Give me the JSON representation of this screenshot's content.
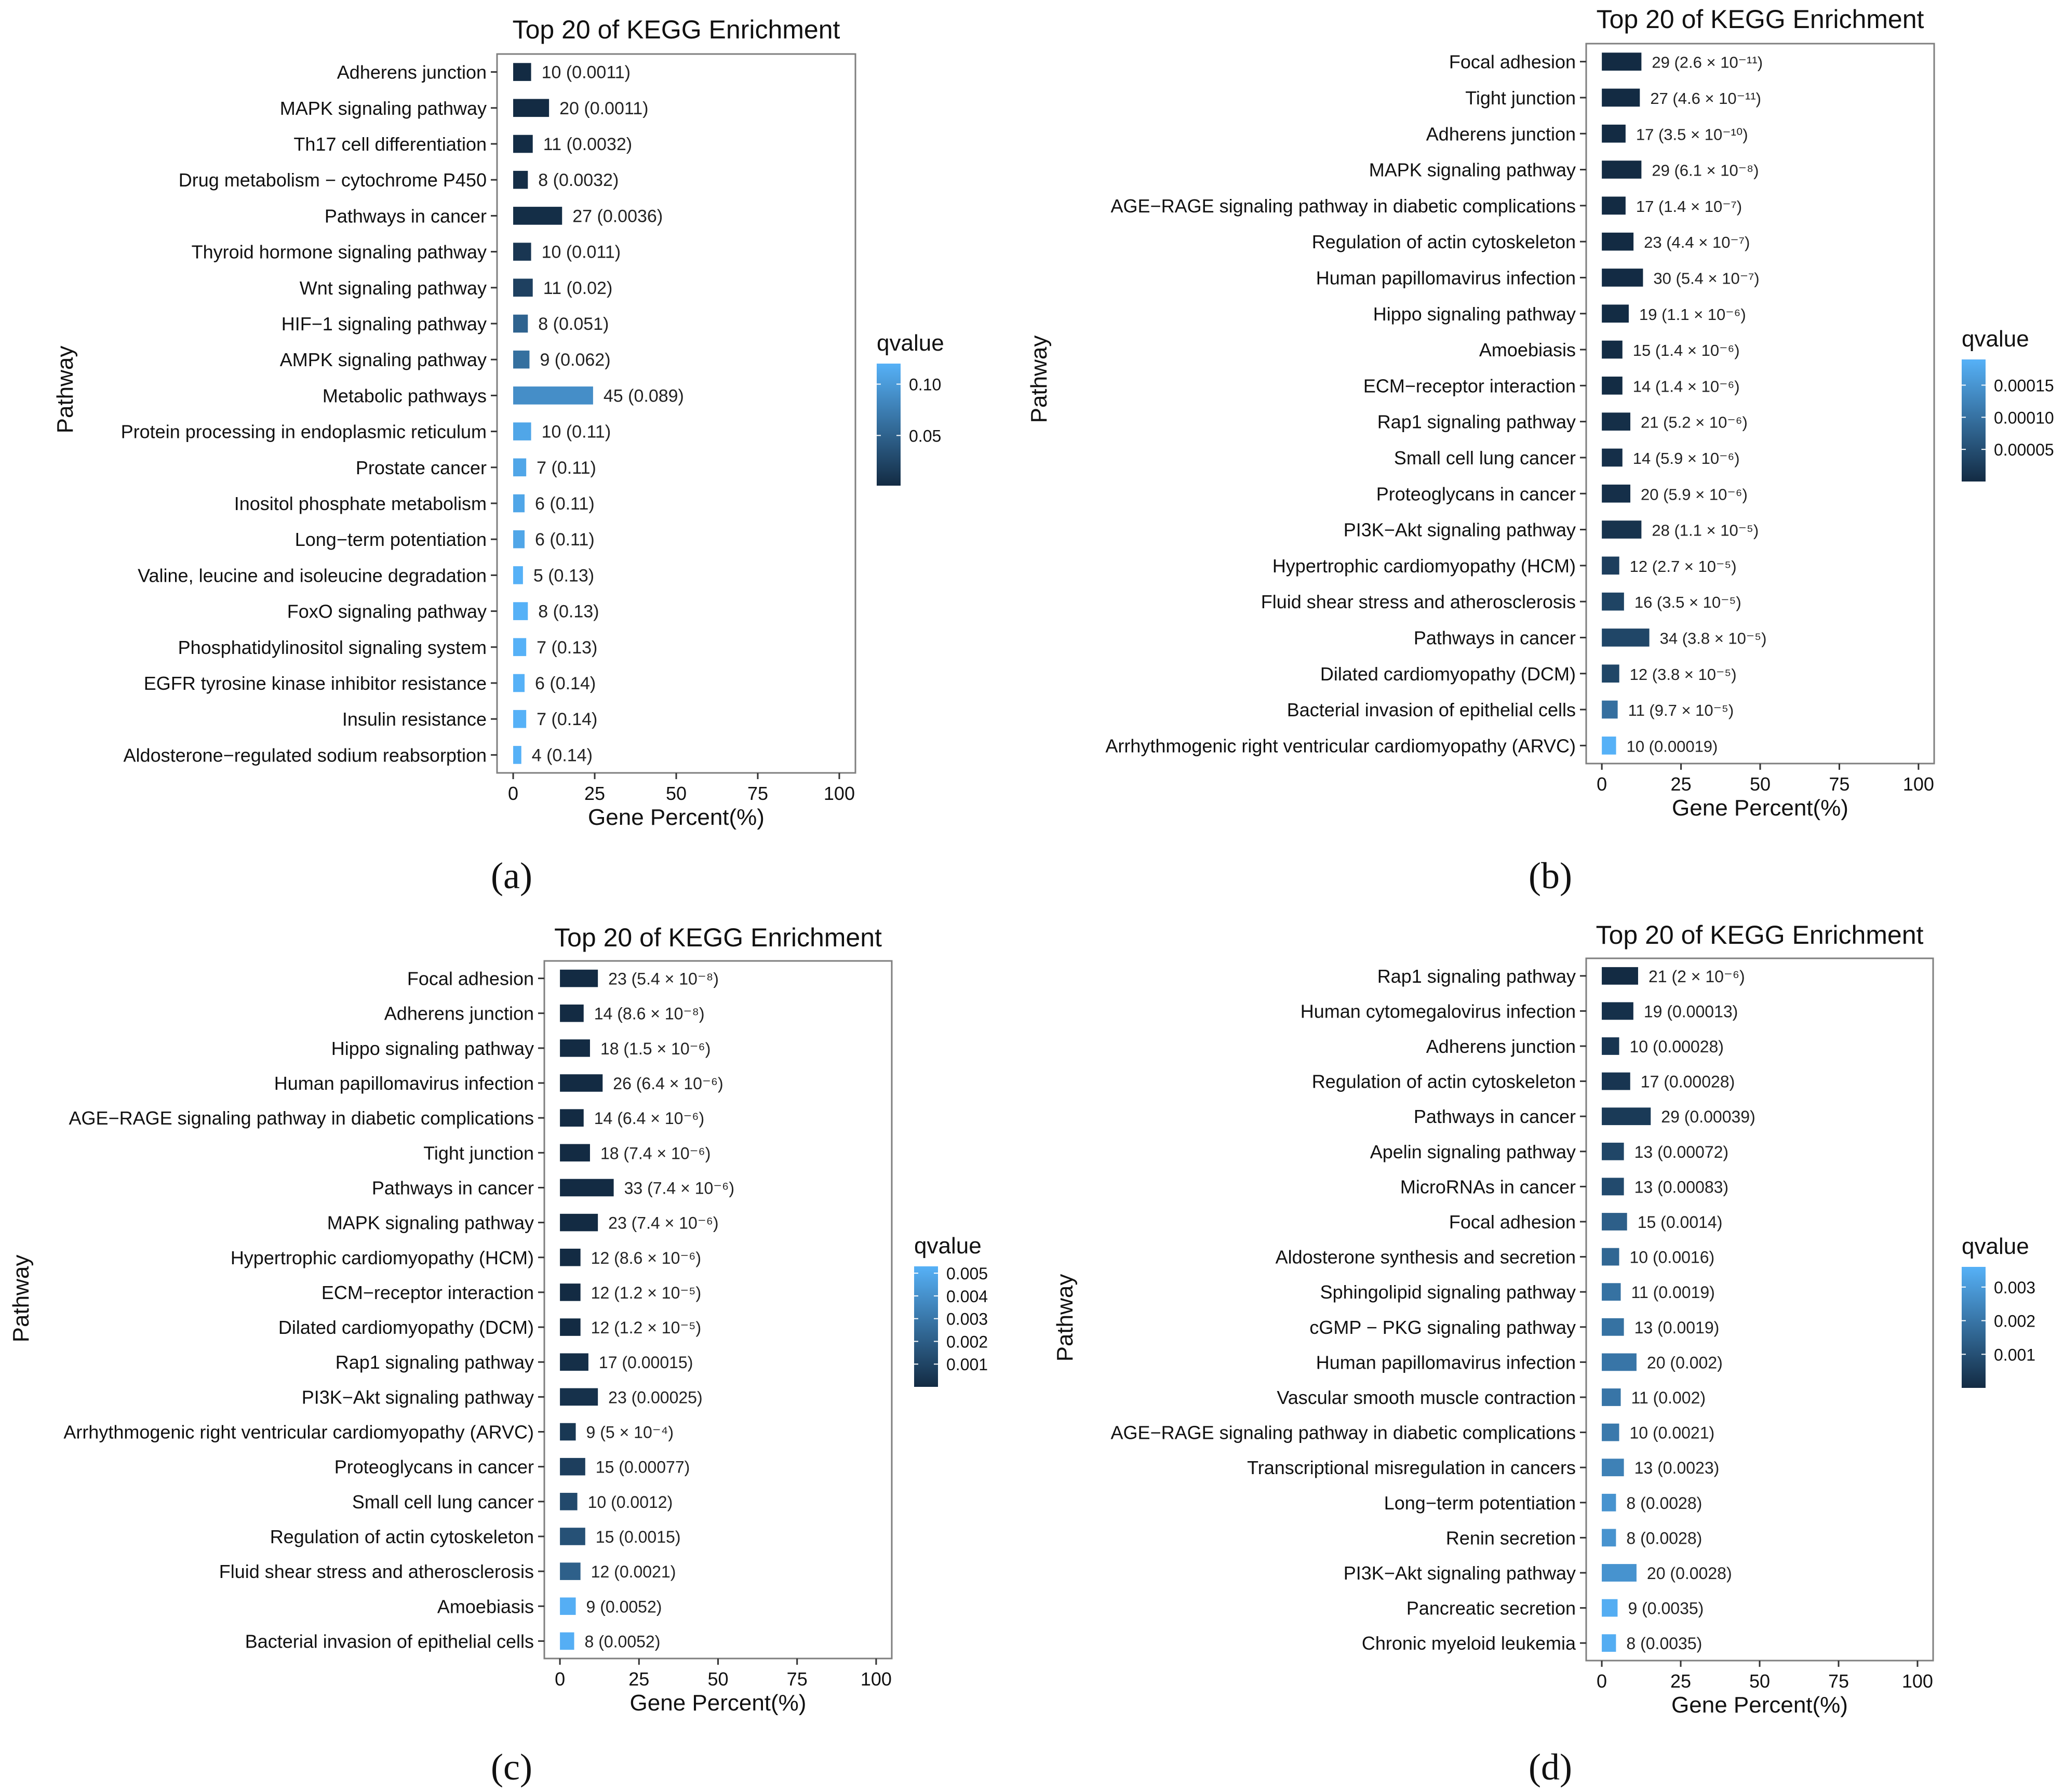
{
  "figure": {
    "panel_captions": [
      "(a)",
      "(b)",
      "(c)",
      "(d)"
    ]
  },
  "colors": {
    "low_q": "#132b43",
    "high_q": "#56b1f7",
    "axis": "#333333",
    "frame": "#7f7f7f"
  },
  "chart_data": [
    {
      "type": "bar",
      "orientation": "horizontal",
      "title": "Top 20 of KEGG Enrichment",
      "xlabel": "Gene Percent(%)",
      "ylabel": "Pathway",
      "xlim": [
        0,
        100
      ],
      "xticks": [
        "0",
        "25",
        "50",
        "75",
        "100"
      ],
      "color_legend": {
        "title": "qvalue",
        "ticks": [
          "0.10",
          "0.05"
        ],
        "tick_values": [
          0.1,
          0.05
        ],
        "range": [
          0.0011,
          0.12
        ]
      },
      "categories": [
        "Adherens junction",
        "MAPK signaling pathway",
        "Th17 cell differentiation",
        "Drug metabolism − cytochrome P450",
        "Pathways in cancer",
        "Thyroid hormone signaling pathway",
        "Wnt signaling pathway",
        "HIF−1 signaling pathway",
        "AMPK signaling pathway",
        "Metabolic pathways",
        "Protein processing in endoplasmic reticulum",
        "Prostate cancer",
        "Inositol phosphate metabolism",
        "Long−term potentiation",
        "Valine, leucine and isoleucine degradation",
        "FoxO signaling pathway",
        "Phosphatidylinositol signaling system",
        "EGFR tyrosine kinase inhibitor resistance",
        "Insulin resistance",
        "Aldosterone−regulated sodium reabsorption"
      ],
      "values": [
        5.5,
        11,
        6,
        4.5,
        15,
        5.5,
        6,
        4.5,
        5,
        24.5,
        5.5,
        4,
        3.5,
        3.5,
        3,
        4.5,
        4,
        3.5,
        4,
        2.5
      ],
      "labels": [
        "10 (0.0011)",
        "20 (0.0011)",
        "11 (0.0032)",
        "8 (0.0032)",
        "27 (0.0036)",
        "10 (0.011)",
        "11 (0.02)",
        "8 (0.051)",
        "9 (0.062)",
        "45 (0.089)",
        "10 (0.11)",
        "7 (0.11)",
        "6 (0.11)",
        "6 (0.11)",
        "5 (0.13)",
        "8 (0.13)",
        "7 (0.13)",
        "6 (0.14)",
        "7 (0.14)",
        "4 (0.14)"
      ],
      "qvalues": [
        0.0011,
        0.0011,
        0.0032,
        0.0032,
        0.0036,
        0.011,
        0.02,
        0.051,
        0.062,
        0.089,
        0.11,
        0.11,
        0.11,
        0.11,
        0.13,
        0.13,
        0.13,
        0.14,
        0.14,
        0.14
      ]
    },
    {
      "type": "bar",
      "orientation": "horizontal",
      "title": "Top 20 of KEGG Enrichment",
      "xlabel": "Gene Percent(%)",
      "ylabel": "Pathway",
      "xlim": [
        0,
        100
      ],
      "xticks": [
        "0",
        "25",
        "50",
        "75",
        "100"
      ],
      "color_legend": {
        "title": "qvalue",
        "ticks": [
          "0.00015",
          "0.00010",
          "0.00005"
        ],
        "tick_values": [
          0.00015,
          0.0001,
          5e-05
        ],
        "range": [
          0,
          0.00019
        ]
      },
      "categories": [
        "Focal adhesion",
        "Tight junction",
        "Adherens junction",
        "MAPK signaling pathway",
        "AGE−RAGE signaling pathway in diabetic complications",
        "Regulation of actin cytoskeleton",
        "Human papillomavirus infection",
        "Hippo signaling pathway",
        "Amoebiasis",
        "ECM−receptor interaction",
        "Rap1 signaling pathway",
        "Small cell lung cancer",
        "Proteoglycans in cancer",
        "PI3K−Akt signaling pathway",
        "Hypertrophic cardiomyopathy (HCM)",
        "Fluid shear stress and atherosclerosis",
        "Pathways in cancer",
        "Dilated cardiomyopathy (DCM)",
        "Bacterial invasion of epithelial cells",
        "Arrhythmogenic right ventricular cardiomyopathy (ARVC)"
      ],
      "values": [
        12.5,
        12,
        7.5,
        12.5,
        7.5,
        10,
        13,
        8.5,
        6.5,
        6.5,
        9,
        6.5,
        9,
        12.5,
        5.5,
        7,
        15,
        5.5,
        5,
        4.5
      ],
      "labels": [
        "29 (2.6 × 10⁻¹¹)",
        "27 (4.6 × 10⁻¹¹)",
        "17 (3.5 × 10⁻¹⁰)",
        "29 (6.1 × 10⁻⁸)",
        "17 (1.4 × 10⁻⁷)",
        "23 (4.4 × 10⁻⁷)",
        "30 (5.4 × 10⁻⁷)",
        "19 (1.1 × 10⁻⁶)",
        "15 (1.4 × 10⁻⁶)",
        "14 (1.4 × 10⁻⁶)",
        "21 (5.2 × 10⁻⁶)",
        "14 (5.9 × 10⁻⁶)",
        "20 (5.9 × 10⁻⁶)",
        "28 (1.1 × 10⁻⁵)",
        "12 (2.7 × 10⁻⁵)",
        "16 (3.5 × 10⁻⁵)",
        "34 (3.8 × 10⁻⁵)",
        "12 (3.8 × 10⁻⁵)",
        "11 (9.7 × 10⁻⁵)",
        "10 (0.00019)"
      ],
      "qvalues": [
        2.6e-11,
        4.6e-11,
        3.5e-10,
        6.1e-08,
        1.4e-07,
        4.4e-07,
        5.4e-07,
        1.1e-06,
        1.4e-06,
        1.4e-06,
        5.2e-06,
        5.9e-06,
        5.9e-06,
        1.1e-05,
        2.7e-05,
        3.5e-05,
        3.8e-05,
        3.8e-05,
        9.7e-05,
        0.00019
      ]
    },
    {
      "type": "bar",
      "orientation": "horizontal",
      "title": "Top 20 of KEGG Enrichment",
      "xlabel": "Gene Percent(%)",
      "ylabel": "Pathway",
      "xlim": [
        0,
        100
      ],
      "xticks": [
        "0",
        "25",
        "50",
        "75",
        "100"
      ],
      "color_legend": {
        "title": "qvalue",
        "ticks": [
          "0.005",
          "0.004",
          "0.003",
          "0.002",
          "0.001"
        ],
        "tick_values": [
          0.005,
          0.004,
          0.003,
          0.002,
          0.001
        ],
        "range": [
          0,
          0.0053
        ]
      },
      "categories": [
        "Focal adhesion",
        "Adherens junction",
        "Hippo signaling pathway",
        "Human papillomavirus infection",
        "AGE−RAGE signaling pathway in diabetic complications",
        "Tight junction",
        "Pathways in cancer",
        "MAPK signaling pathway",
        "Hypertrophic cardiomyopathy (HCM)",
        "ECM−receptor interaction",
        "Dilated cardiomyopathy (DCM)",
        "Rap1 signaling pathway",
        "PI3K−Akt signaling pathway",
        "Arrhythmogenic right ventricular cardiomyopathy (ARVC)",
        "Proteoglycans in cancer",
        "Small cell lung cancer",
        "Regulation of actin cytoskeleton",
        "Fluid shear stress and atherosclerosis",
        "Amoebiasis",
        "Bacterial invasion of epithelial cells"
      ],
      "values": [
        12,
        7.5,
        9.5,
        13.5,
        7.5,
        9.5,
        17,
        12,
        6.5,
        6.5,
        6.5,
        9,
        12,
        5,
        8,
        5.5,
        8,
        6.5,
        5,
        4.5
      ],
      "labels": [
        "23 (5.4 × 10⁻⁸)",
        "14 (8.6 × 10⁻⁸)",
        "18 (1.5 × 10⁻⁶)",
        "26 (6.4 × 10⁻⁶)",
        "14 (6.4 × 10⁻⁶)",
        "18 (7.4 × 10⁻⁶)",
        "33 (7.4 × 10⁻⁶)",
        "23 (7.4 × 10⁻⁶)",
        "12 (8.6 × 10⁻⁶)",
        "12 (1.2 × 10⁻⁵)",
        "12 (1.2 × 10⁻⁵)",
        "17 (0.00015)",
        "23 (0.00025)",
        "9 (5 × 10⁻⁴)",
        "15 (0.00077)",
        "10 (0.0012)",
        "15 (0.0015)",
        "12 (0.0021)",
        "9 (0.0052)",
        "8 (0.0052)"
      ],
      "qvalues": [
        5.4e-08,
        8.6e-08,
        1.5e-06,
        6.4e-06,
        6.4e-06,
        7.4e-06,
        7.4e-06,
        7.4e-06,
        8.6e-06,
        1.2e-05,
        1.2e-05,
        0.00015,
        0.00025,
        0.0005,
        0.00077,
        0.0012,
        0.0015,
        0.0021,
        0.0052,
        0.0052
      ]
    },
    {
      "type": "bar",
      "orientation": "horizontal",
      "title": "Top 20 of KEGG Enrichment",
      "xlabel": "Gene Percent(%)",
      "ylabel": "Pathway",
      "xlim": [
        0,
        100
      ],
      "xticks": [
        "0",
        "25",
        "50",
        "75",
        "100"
      ],
      "color_legend": {
        "title": "qvalue",
        "ticks": [
          "0.003",
          "0.002",
          "0.001"
        ],
        "tick_values": [
          0.003,
          0.002,
          0.001
        ],
        "range": [
          0,
          0.0036
        ]
      },
      "categories": [
        "Rap1 signaling pathway",
        "Human cytomegalovirus infection",
        "Adherens junction",
        "Regulation of actin cytoskeleton",
        "Pathways in cancer",
        "Apelin signaling pathway",
        "MicroRNAs in cancer",
        "Focal adhesion",
        "Aldosterone synthesis and secretion",
        "Sphingolipid signaling pathway",
        "cGMP − PKG signaling pathway",
        "Human papillomavirus infection",
        "Vascular smooth muscle contraction",
        "AGE−RAGE signaling pathway in diabetic complications",
        "Transcriptional misregulation in cancers",
        "Long−term potentiation",
        "Renin secretion",
        "PI3K−Akt signaling pathway",
        "Pancreatic secretion",
        "Chronic myeloid leukemia"
      ],
      "values": [
        11.5,
        10,
        5.5,
        9,
        15.5,
        7,
        7,
        8,
        5.5,
        6,
        7,
        11,
        6,
        5.5,
        7,
        4.5,
        4.5,
        11,
        5,
        4.5
      ],
      "labels": [
        "21 (2 × 10⁻⁶)",
        "19 (0.00013)",
        "10 (0.00028)",
        "17 (0.00028)",
        "29 (0.00039)",
        "13 (0.00072)",
        "13 (0.00083)",
        "15 (0.0014)",
        "10 (0.0016)",
        "11 (0.0019)",
        "13 (0.0019)",
        "20 (0.002)",
        "11 (0.002)",
        "10 (0.0021)",
        "13 (0.0023)",
        "8 (0.0028)",
        "8 (0.0028)",
        "20 (0.0028)",
        "9 (0.0035)",
        "8 (0.0035)"
      ],
      "qvalues": [
        2e-06,
        0.00013,
        0.00028,
        0.00028,
        0.00039,
        0.00072,
        0.00083,
        0.0014,
        0.0016,
        0.0019,
        0.0019,
        0.002,
        0.002,
        0.0021,
        0.0023,
        0.0028,
        0.0028,
        0.0028,
        0.0035,
        0.0035
      ]
    }
  ]
}
